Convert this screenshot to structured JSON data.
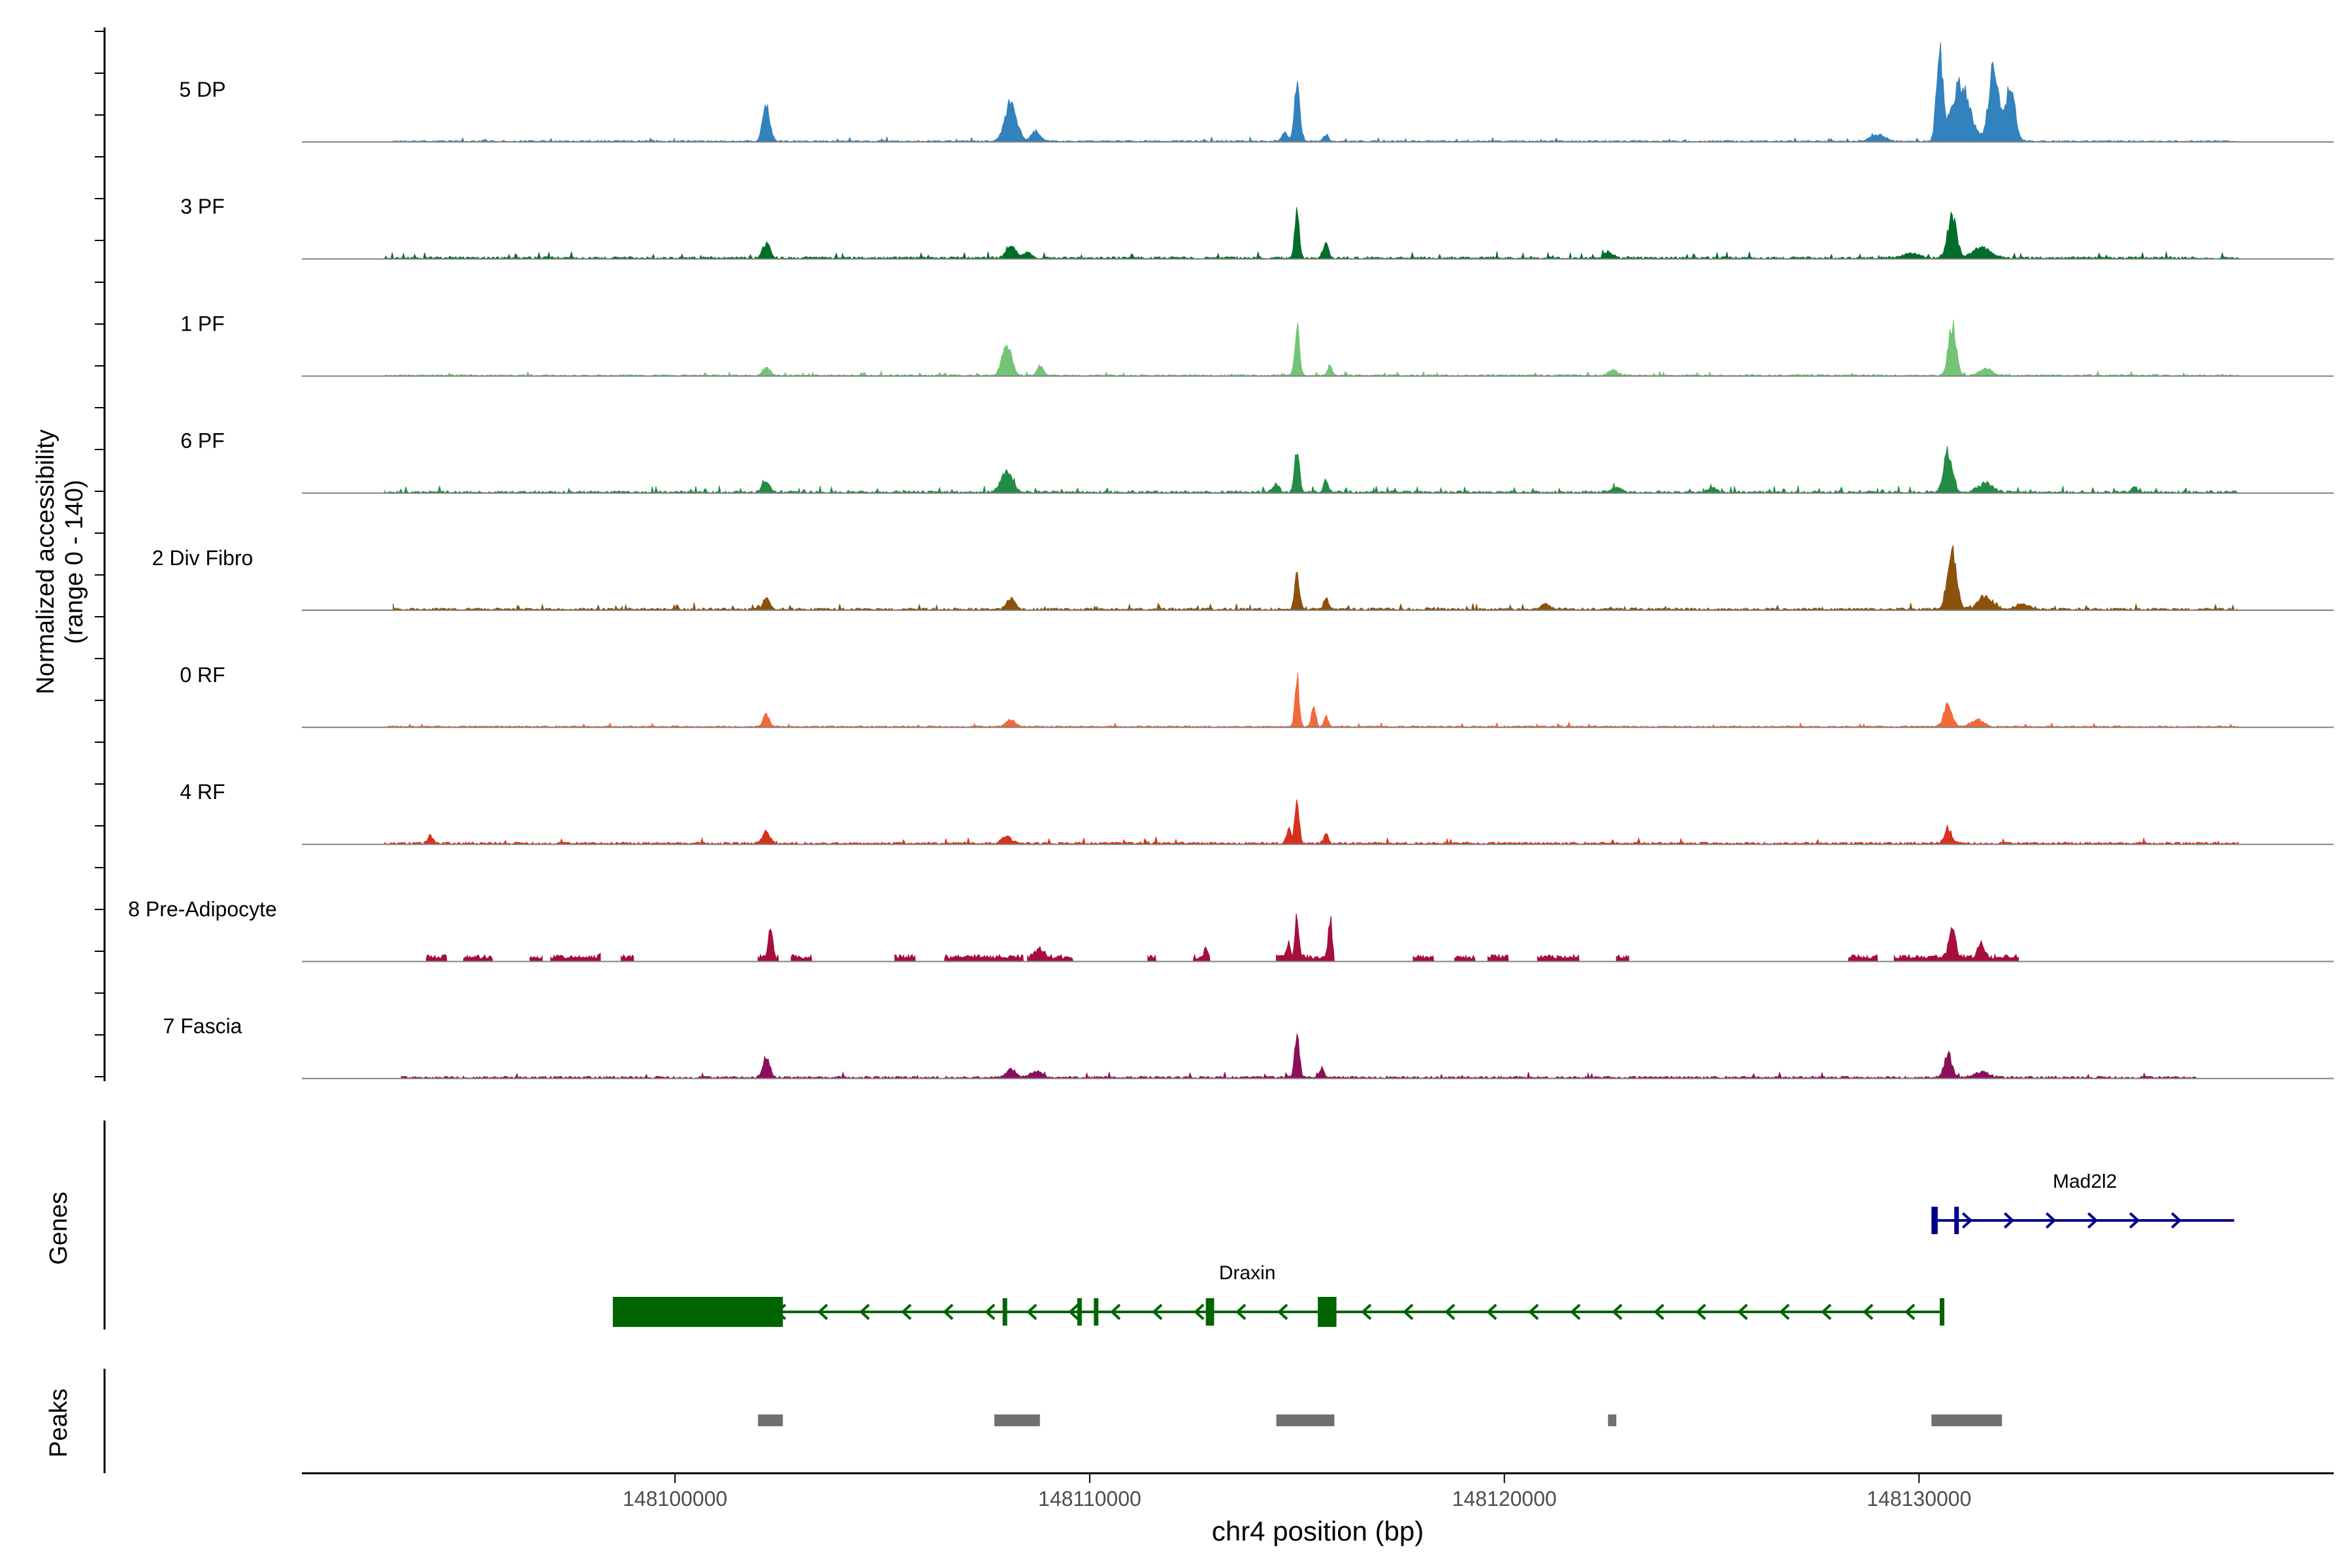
{
  "chart_data": {
    "type": "area",
    "title": "",
    "y_label_line1": "Normalized accessibility",
    "y_label_line2": "(range 0 - 140)",
    "ylim": [
      0,
      140
    ],
    "xlabel": "chr4 position (bp)",
    "xlim": [
      148091000,
      148140000
    ],
    "x_ticks": [
      148100000,
      148110000,
      148120000,
      148130000
    ],
    "x_tick_labels": [
      "148100000",
      "148110000",
      "148120000",
      "148130000"
    ],
    "genes_label": "Genes",
    "peaks_label": "Peaks",
    "tracks": [
      {
        "name": "5 DP",
        "color": "#3182bd",
        "noise": 2,
        "segments": [
          [
            148093200,
            148137700
          ]
        ],
        "peaks": [
          [
            148102200,
            48,
            120
          ],
          [
            148108100,
            52,
            200
          ],
          [
            148108700,
            14,
            150
          ],
          [
            148114700,
            12,
            90
          ],
          [
            148115000,
            88,
            90
          ],
          [
            148115700,
            9,
            80
          ],
          [
            148130500,
            118,
            110
          ],
          [
            148131000,
            80,
            300
          ],
          [
            148131800,
            100,
            170
          ],
          [
            148132200,
            75,
            160
          ],
          [
            148129000,
            9,
            250
          ]
        ]
      },
      {
        "name": "3 PF",
        "color": "#006d2c",
        "noise": 3,
        "segments": [
          [
            148093000,
            148137700
          ]
        ],
        "peaks": [
          [
            148102200,
            22,
            120
          ],
          [
            148108100,
            18,
            160
          ],
          [
            148108500,
            8,
            150
          ],
          [
            148115000,
            64,
            80
          ],
          [
            148115700,
            22,
            80
          ],
          [
            148122500,
            8,
            150
          ],
          [
            148130800,
            60,
            150
          ],
          [
            148131500,
            14,
            300
          ],
          [
            148129800,
            6,
            300
          ]
        ]
      },
      {
        "name": "1 PF",
        "color": "#74c476",
        "noise": 2,
        "segments": [
          [
            148093000,
            148137700
          ]
        ],
        "peaks": [
          [
            148102200,
            12,
            120
          ],
          [
            148108000,
            42,
            160
          ],
          [
            148108800,
            14,
            100
          ],
          [
            148115000,
            68,
            80
          ],
          [
            148115800,
            14,
            80
          ],
          [
            148122600,
            8,
            150
          ],
          [
            148130800,
            72,
            130
          ],
          [
            148131600,
            10,
            200
          ]
        ]
      },
      {
        "name": "6 PF",
        "color": "#238b45",
        "noise": 3,
        "segments": [
          [
            148093000,
            148137700
          ]
        ],
        "peaks": [
          [
            148102200,
            14,
            120
          ],
          [
            148108000,
            28,
            200
          ],
          [
            148114500,
            12,
            100
          ],
          [
            148115000,
            65,
            80
          ],
          [
            148115700,
            18,
            80
          ],
          [
            148122700,
            8,
            150
          ],
          [
            148125000,
            6,
            150
          ],
          [
            148130700,
            60,
            140
          ],
          [
            148131600,
            12,
            250
          ],
          [
            148135200,
            6,
            100
          ]
        ]
      },
      {
        "name": "2 Div Fibro",
        "color": "#8c510a",
        "noise": 3,
        "segments": [
          [
            148093200,
            148137700
          ]
        ],
        "peaks": [
          [
            148102200,
            14,
            120
          ],
          [
            148108100,
            14,
            140
          ],
          [
            148115000,
            50,
            80
          ],
          [
            148115700,
            16,
            80
          ],
          [
            148121000,
            8,
            150
          ],
          [
            148130800,
            80,
            150
          ],
          [
            148131600,
            18,
            250
          ],
          [
            148132500,
            8,
            200
          ]
        ]
      },
      {
        "name": "0 RF",
        "color": "#f16a3c",
        "noise": 2,
        "segments": [
          [
            148093000,
            148137700
          ]
        ],
        "peaks": [
          [
            148102200,
            18,
            100
          ],
          [
            148108100,
            10,
            150
          ],
          [
            148115000,
            72,
            70
          ],
          [
            148115400,
            30,
            70
          ],
          [
            148115700,
            16,
            70
          ],
          [
            148130700,
            30,
            140
          ],
          [
            148131400,
            10,
            200
          ]
        ]
      },
      {
        "name": "4 RF",
        "color": "#d7301f",
        "noise": 3,
        "segments": [
          [
            148093000,
            148137700
          ]
        ],
        "peaks": [
          [
            148094100,
            10,
            100
          ],
          [
            148102200,
            16,
            120
          ],
          [
            148108000,
            10,
            150
          ],
          [
            148114800,
            20,
            80
          ],
          [
            148115000,
            68,
            70
          ],
          [
            148115700,
            14,
            70
          ],
          [
            148130700,
            22,
            120
          ]
        ]
      },
      {
        "name": "8 Pre-Adipocyte",
        "color": "#a50f3c",
        "noise": 0,
        "segments": [
          [
            148094000,
            148094500
          ],
          [
            148094900,
            148095600
          ],
          [
            148096500,
            148096800
          ],
          [
            148097000,
            148098200
          ],
          [
            148098700,
            148099000
          ],
          [
            148102000,
            148102500
          ],
          [
            148102800,
            148103300
          ],
          [
            148105300,
            148105800
          ],
          [
            148106500,
            148108400
          ],
          [
            148108500,
            148109600
          ],
          [
            148111400,
            148111600
          ],
          [
            148112500,
            148112900
          ],
          [
            148114500,
            148115900
          ],
          [
            148117800,
            148118300
          ],
          [
            148118800,
            148119300
          ],
          [
            148119600,
            148120100
          ],
          [
            148120800,
            148121800
          ],
          [
            148122700,
            148123000
          ],
          [
            148128300,
            148129000
          ],
          [
            148129400,
            148132400
          ]
        ],
        "peaks": [
          [
            148102300,
            42,
            70
          ],
          [
            148114800,
            22,
            60
          ],
          [
            148115000,
            58,
            60
          ],
          [
            148115800,
            54,
            60
          ],
          [
            148098300,
            14,
            80
          ],
          [
            148108800,
            12,
            150
          ],
          [
            148130800,
            48,
            100
          ],
          [
            148131500,
            22,
            100
          ],
          [
            148112800,
            12,
            60
          ]
        ]
      },
      {
        "name": "7 Fascia",
        "color": "#8b0f5a",
        "noise": 3,
        "segments": [
          [
            148093400,
            148136700
          ]
        ],
        "peaks": [
          [
            148102200,
            26,
            120
          ],
          [
            148108100,
            12,
            160
          ],
          [
            148108700,
            8,
            200
          ],
          [
            148115000,
            58,
            80
          ],
          [
            148115600,
            12,
            80
          ],
          [
            148130700,
            32,
            130
          ],
          [
            148131500,
            8,
            250
          ]
        ]
      }
    ],
    "genes": [
      {
        "name": "Mad2l2",
        "color": "#00008b",
        "strand": "+",
        "start": 148130300,
        "end": 148137600,
        "exons": [
          [
            148130300,
            148130450
          ],
          [
            148130850,
            148130900
          ]
        ]
      },
      {
        "name": "Draxin",
        "color": "#006400",
        "strand": "-",
        "start": 148098500,
        "end": 148130600,
        "exons": [
          [
            148098500,
            148102600
          ],
          [
            148107900,
            148107970
          ],
          [
            148109700,
            148109770
          ],
          [
            148110100,
            148110170
          ],
          [
            148112800,
            148113000
          ],
          [
            148115500,
            148115950
          ],
          [
            148130500,
            148130600
          ]
        ]
      }
    ],
    "peaks_track": {
      "color": "#707070",
      "regions": [
        [
          148102000,
          148102600
        ],
        [
          148107700,
          148108800
        ],
        [
          148114500,
          148115900
        ],
        [
          148122500,
          148122700
        ],
        [
          148130300,
          148132000
        ]
      ]
    }
  }
}
